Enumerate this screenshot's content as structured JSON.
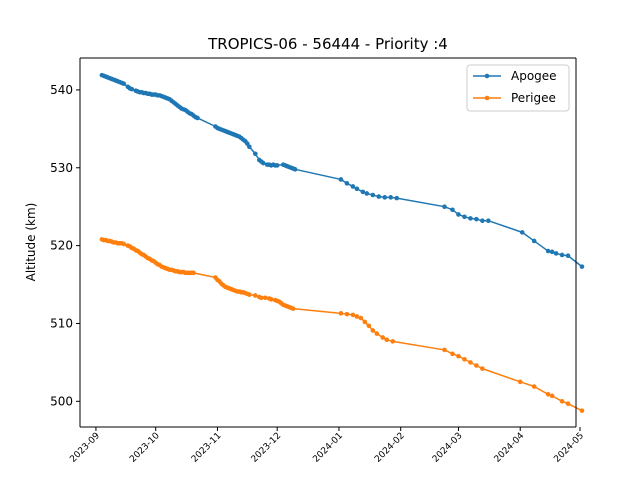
{
  "chart_data": {
    "type": "line",
    "title": "TROPICS-06 - 56444 - Priority :4",
    "xlabel": "",
    "ylabel": "Altitude (km)",
    "ylim": [
      496.7,
      544.1
    ],
    "xlim": [
      "2023-08-24",
      "2024-04-29"
    ],
    "grid": false,
    "legend_position": "top-right",
    "x_ticks": [
      "2023-09",
      "2023-10",
      "2023-11",
      "2023-12",
      "2024-01",
      "2024-02",
      "2024-03",
      "2024-04",
      "2024-05"
    ],
    "y_ticks": [
      500,
      510,
      520,
      530,
      540
    ],
    "series": [
      {
        "name": "Apogee",
        "color": "#1f77b4",
        "points": [
          [
            "2023-09-04",
            541.9
          ],
          [
            "2023-09-05",
            541.8
          ],
          [
            "2023-09-06",
            541.7
          ],
          [
            "2023-09-07",
            541.6
          ],
          [
            "2023-09-08",
            541.5
          ],
          [
            "2023-09-09",
            541.4
          ],
          [
            "2023-09-10",
            541.3
          ],
          [
            "2023-09-11",
            541.2
          ],
          [
            "2023-09-12",
            541.1
          ],
          [
            "2023-09-13",
            541.0
          ],
          [
            "2023-09-14",
            540.9
          ],
          [
            "2023-09-15",
            540.8
          ],
          [
            "2023-09-17",
            540.4
          ],
          [
            "2023-09-18",
            540.2
          ],
          [
            "2023-09-19",
            540.1
          ],
          [
            "2023-09-21",
            539.9
          ],
          [
            "2023-09-22",
            539.8
          ],
          [
            "2023-09-23",
            539.7
          ],
          [
            "2023-09-24",
            539.7
          ],
          [
            "2023-09-25",
            539.6
          ],
          [
            "2023-09-26",
            539.6
          ],
          [
            "2023-09-27",
            539.5
          ],
          [
            "2023-09-28",
            539.5
          ],
          [
            "2023-09-29",
            539.4
          ],
          [
            "2023-09-30",
            539.4
          ],
          [
            "2023-10-01",
            539.4
          ],
          [
            "2023-10-02",
            539.3
          ],
          [
            "2023-10-03",
            539.3
          ],
          [
            "2023-10-04",
            539.2
          ],
          [
            "2023-10-05",
            539.1
          ],
          [
            "2023-10-06",
            539.0
          ],
          [
            "2023-10-07",
            538.9
          ],
          [
            "2023-10-08",
            538.8
          ],
          [
            "2023-10-09",
            538.6
          ],
          [
            "2023-10-10",
            538.4
          ],
          [
            "2023-10-11",
            538.2
          ],
          [
            "2023-10-12",
            538.0
          ],
          [
            "2023-10-13",
            537.8
          ],
          [
            "2023-10-14",
            537.6
          ],
          [
            "2023-10-15",
            537.5
          ],
          [
            "2023-10-16",
            537.4
          ],
          [
            "2023-10-17",
            537.2
          ],
          [
            "2023-10-18",
            537.0
          ],
          [
            "2023-10-19",
            536.9
          ],
          [
            "2023-10-20",
            536.7
          ],
          [
            "2023-10-21",
            536.5
          ],
          [
            "2023-10-22",
            536.4
          ],
          [
            "2023-10-31",
            535.3
          ],
          [
            "2023-11-01",
            535.1
          ],
          [
            "2023-11-02",
            535.0
          ],
          [
            "2023-11-03",
            534.9
          ],
          [
            "2023-11-04",
            534.8
          ],
          [
            "2023-11-05",
            534.7
          ],
          [
            "2023-11-06",
            534.6
          ],
          [
            "2023-11-07",
            534.5
          ],
          [
            "2023-11-08",
            534.4
          ],
          [
            "2023-11-09",
            534.3
          ],
          [
            "2023-11-10",
            534.2
          ],
          [
            "2023-11-11",
            534.1
          ],
          [
            "2023-11-12",
            534.0
          ],
          [
            "2023-11-13",
            533.8
          ],
          [
            "2023-11-14",
            533.6
          ],
          [
            "2023-11-15",
            533.4
          ],
          [
            "2023-11-16",
            533.1
          ],
          [
            "2023-11-17",
            532.7
          ],
          [
            "2023-11-20",
            531.8
          ],
          [
            "2023-11-22",
            531.0
          ],
          [
            "2023-11-23",
            530.8
          ],
          [
            "2023-11-24",
            530.6
          ],
          [
            "2023-11-26",
            530.4
          ],
          [
            "2023-11-27",
            530.4
          ],
          [
            "2023-11-28",
            530.3
          ],
          [
            "2023-11-29",
            530.4
          ],
          [
            "2023-11-30",
            530.3
          ],
          [
            "2023-12-01",
            530.3
          ],
          [
            "2023-12-04",
            530.4
          ],
          [
            "2023-12-05",
            530.3
          ],
          [
            "2023-12-06",
            530.2
          ],
          [
            "2023-12-07",
            530.1
          ],
          [
            "2023-12-08",
            530.0
          ],
          [
            "2023-12-09",
            529.9
          ],
          [
            "2023-12-10",
            529.8
          ],
          [
            "2024-01-02",
            528.5
          ],
          [
            "2024-01-05",
            528.0
          ],
          [
            "2024-01-08",
            527.6
          ],
          [
            "2024-01-10",
            527.3
          ],
          [
            "2024-01-13",
            526.9
          ],
          [
            "2024-01-15",
            526.7
          ],
          [
            "2024-01-18",
            526.5
          ],
          [
            "2024-01-21",
            526.3
          ],
          [
            "2024-01-24",
            526.2
          ],
          [
            "2024-01-27",
            526.2
          ],
          [
            "2024-01-30",
            526.1
          ],
          [
            "2024-02-23",
            525.0
          ],
          [
            "2024-02-27",
            524.6
          ],
          [
            "2024-03-01",
            524.0
          ],
          [
            "2024-03-04",
            523.7
          ],
          [
            "2024-03-07",
            523.5
          ],
          [
            "2024-03-10",
            523.4
          ],
          [
            "2024-03-13",
            523.2
          ],
          [
            "2024-03-16",
            523.2
          ],
          [
            "2024-04-02",
            521.7
          ],
          [
            "2024-04-08",
            520.6
          ],
          [
            "2024-04-15",
            519.3
          ],
          [
            "2024-04-17",
            519.2
          ],
          [
            "2024-04-19",
            519.0
          ],
          [
            "2024-04-22",
            518.8
          ],
          [
            "2024-04-25",
            518.7
          ],
          [
            "2024-05-02",
            517.3
          ]
        ]
      },
      {
        "name": "Perigee",
        "color": "#ff7f0e",
        "points": [
          [
            "2023-09-04",
            520.8
          ],
          [
            "2023-09-05",
            520.7
          ],
          [
            "2023-09-06",
            520.7
          ],
          [
            "2023-09-07",
            520.6
          ],
          [
            "2023-09-08",
            520.6
          ],
          [
            "2023-09-09",
            520.5
          ],
          [
            "2023-09-10",
            520.4
          ],
          [
            "2023-09-11",
            520.4
          ],
          [
            "2023-09-12",
            520.3
          ],
          [
            "2023-09-13",
            520.3
          ],
          [
            "2023-09-14",
            520.3
          ],
          [
            "2023-09-15",
            520.2
          ],
          [
            "2023-09-17",
            520.0
          ],
          [
            "2023-09-18",
            519.9
          ],
          [
            "2023-09-19",
            519.7
          ],
          [
            "2023-09-20",
            519.6
          ],
          [
            "2023-09-21",
            519.4
          ],
          [
            "2023-09-22",
            519.3
          ],
          [
            "2023-09-23",
            519.1
          ],
          [
            "2023-09-24",
            518.9
          ],
          [
            "2023-09-25",
            518.8
          ],
          [
            "2023-09-26",
            518.6
          ],
          [
            "2023-09-27",
            518.4
          ],
          [
            "2023-09-28",
            518.3
          ],
          [
            "2023-09-29",
            518.1
          ],
          [
            "2023-09-30",
            518.0
          ],
          [
            "2023-10-01",
            517.8
          ],
          [
            "2023-10-02",
            517.6
          ],
          [
            "2023-10-03",
            517.5
          ],
          [
            "2023-10-04",
            517.3
          ],
          [
            "2023-10-05",
            517.2
          ],
          [
            "2023-10-06",
            517.1
          ],
          [
            "2023-10-07",
            517.0
          ],
          [
            "2023-10-08",
            516.9
          ],
          [
            "2023-10-09",
            516.9
          ],
          [
            "2023-10-10",
            516.8
          ],
          [
            "2023-10-11",
            516.7
          ],
          [
            "2023-10-12",
            516.7
          ],
          [
            "2023-10-13",
            516.6
          ],
          [
            "2023-10-14",
            516.6
          ],
          [
            "2023-10-15",
            516.6
          ],
          [
            "2023-10-16",
            516.5
          ],
          [
            "2023-10-17",
            516.5
          ],
          [
            "2023-10-18",
            516.5
          ],
          [
            "2023-10-19",
            516.5
          ],
          [
            "2023-10-20",
            516.5
          ],
          [
            "2023-10-31",
            515.9
          ],
          [
            "2023-11-01",
            515.6
          ],
          [
            "2023-11-02",
            515.4
          ],
          [
            "2023-11-03",
            515.1
          ],
          [
            "2023-11-04",
            514.9
          ],
          [
            "2023-11-05",
            514.7
          ],
          [
            "2023-11-06",
            514.6
          ],
          [
            "2023-11-07",
            514.5
          ],
          [
            "2023-11-08",
            514.4
          ],
          [
            "2023-11-09",
            514.3
          ],
          [
            "2023-11-10",
            514.2
          ],
          [
            "2023-11-11",
            514.1
          ],
          [
            "2023-11-12",
            514.1
          ],
          [
            "2023-11-13",
            514.0
          ],
          [
            "2023-11-14",
            514.0
          ],
          [
            "2023-11-15",
            513.9
          ],
          [
            "2023-11-16",
            513.8
          ],
          [
            "2023-11-17",
            513.7
          ],
          [
            "2023-11-20",
            513.6
          ],
          [
            "2023-11-22",
            513.4
          ],
          [
            "2023-11-23",
            513.3
          ],
          [
            "2023-11-25",
            513.3
          ],
          [
            "2023-11-27",
            513.2
          ],
          [
            "2023-11-28",
            513.1
          ],
          [
            "2023-11-30",
            513.0
          ],
          [
            "2023-12-01",
            512.9
          ],
          [
            "2023-12-02",
            512.8
          ],
          [
            "2023-12-03",
            512.6
          ],
          [
            "2023-12-04",
            512.4
          ],
          [
            "2023-12-05",
            512.3
          ],
          [
            "2023-12-06",
            512.2
          ],
          [
            "2023-12-07",
            512.1
          ],
          [
            "2023-12-08",
            512.0
          ],
          [
            "2023-12-09",
            511.9
          ],
          [
            "2024-01-02",
            511.3
          ],
          [
            "2024-01-05",
            511.2
          ],
          [
            "2024-01-08",
            511.1
          ],
          [
            "2024-01-10",
            510.9
          ],
          [
            "2024-01-12",
            510.7
          ],
          [
            "2024-01-14",
            510.2
          ],
          [
            "2024-01-16",
            509.7
          ],
          [
            "2024-01-18",
            509.1
          ],
          [
            "2024-01-20",
            508.7
          ],
          [
            "2024-01-23",
            508.2
          ],
          [
            "2024-01-25",
            507.9
          ],
          [
            "2024-01-28",
            507.7
          ],
          [
            "2024-02-23",
            506.6
          ],
          [
            "2024-02-27",
            506.1
          ],
          [
            "2024-03-01",
            505.8
          ],
          [
            "2024-03-04",
            505.4
          ],
          [
            "2024-03-07",
            505.0
          ],
          [
            "2024-03-10",
            504.6
          ],
          [
            "2024-03-13",
            504.2
          ],
          [
            "2024-04-01",
            502.5
          ],
          [
            "2024-04-08",
            501.9
          ],
          [
            "2024-04-15",
            500.9
          ],
          [
            "2024-04-17",
            500.7
          ],
          [
            "2024-04-22",
            500.0
          ],
          [
            "2024-04-25",
            499.7
          ],
          [
            "2024-05-02",
            498.8
          ]
        ]
      }
    ]
  }
}
